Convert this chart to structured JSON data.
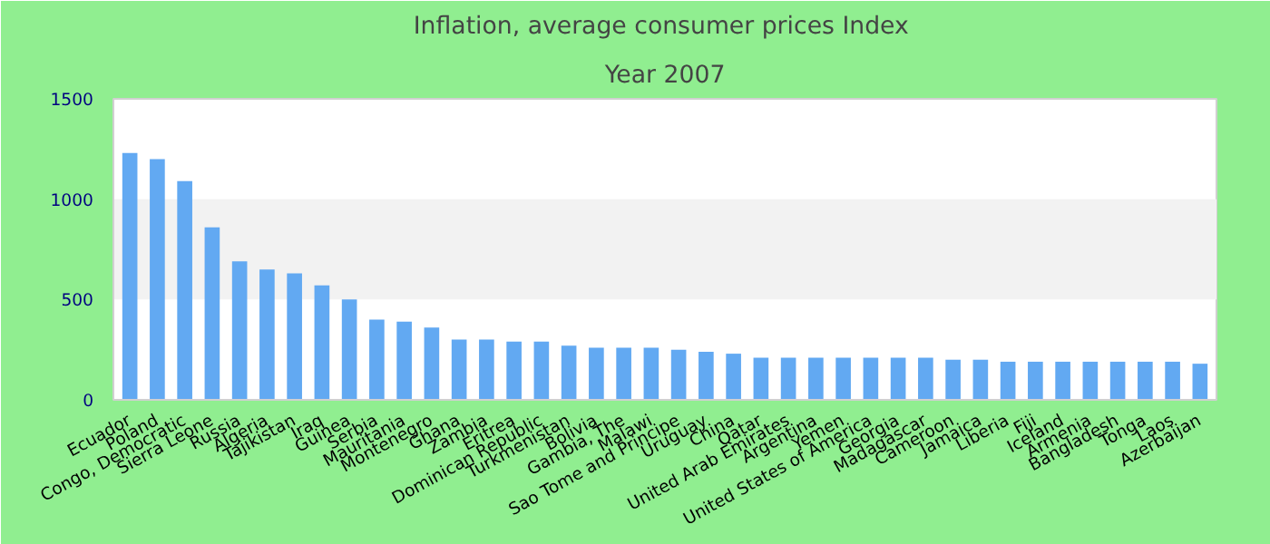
{
  "chart_data": {
    "type": "bar",
    "title": "Inflation, average consumer prices  Index",
    "subtitle": "Year 2007",
    "categories": [
      "Ecuador",
      "Poland",
      "Congo, Democratic",
      "Sierra Leone",
      "Russia",
      "Algeria",
      "Tajikistan",
      "Iraq",
      "Guinea",
      "Serbia",
      "Mauritania",
      "Montenegro",
      "Ghana",
      "Zambia",
      "Eritrea",
      "Dominican Republic",
      "Turkmenistan",
      "Bolivia",
      "Gambia, The",
      "Malawi",
      "Sao Tome and Principe",
      "Uruguay",
      "China",
      "Qatar",
      "United Arab Emirates",
      "Argentina",
      "Yemen",
      "United States of America",
      "Georgia",
      "Madagascar",
      "Cameroon",
      "Jamaica",
      "Liberia",
      "Fiji",
      "Iceland",
      "Armenia",
      "Bangladesh",
      "Tonga",
      "Laos",
      "Azerbaijan"
    ],
    "values": [
      1230,
      1200,
      1090,
      860,
      690,
      650,
      630,
      570,
      500,
      400,
      390,
      360,
      300,
      300,
      290,
      290,
      270,
      260,
      260,
      260,
      250,
      240,
      230,
      210,
      210,
      210,
      210,
      210,
      210,
      210,
      200,
      200,
      190,
      190,
      190,
      190,
      190,
      190,
      190,
      180
    ],
    "color": "#62a9f2",
    "ylim": [
      0,
      1500
    ],
    "yticks": [
      0,
      500,
      1000,
      1500
    ],
    "bands": [
      {
        "axis": "y",
        "from": 500,
        "to": 1000,
        "color": "#f2f2f2"
      }
    ]
  }
}
